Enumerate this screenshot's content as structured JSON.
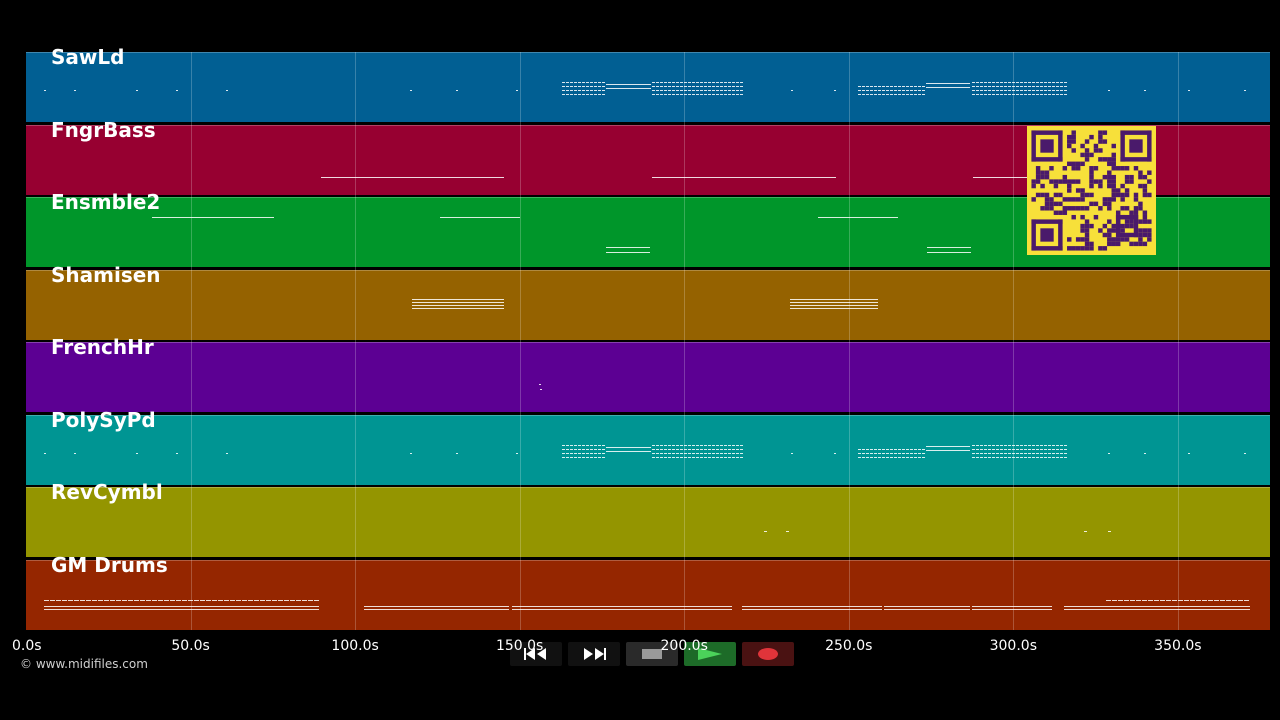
{
  "tracks": [
    {
      "name": "SawLd",
      "color": "#015f93"
    },
    {
      "name": "FngrBass",
      "color": "#970031"
    },
    {
      "name": "Ensmble2",
      "color": "#00962a"
    },
    {
      "name": "Shamisen",
      "color": "#956200"
    },
    {
      "name": "FrenchHr",
      "color": "#5c0093"
    },
    {
      "name": "PolySyPd",
      "color": "#009593"
    },
    {
      "name": "RevCymbl",
      "color": "#949500"
    },
    {
      "name": "GM Drums",
      "color": "#952600"
    }
  ],
  "timeline": {
    "labels": [
      "0.0s",
      "50.0s",
      "100.0s",
      "150.0s",
      "200.0s",
      "250.0s",
      "300.0s",
      "350.0s"
    ],
    "max_seconds": 378
  },
  "transport": {
    "rewind_icon": "rewind-icon",
    "forward_icon": "fast-forward-icon",
    "stop_icon": "stop-icon",
    "play_icon": "play-icon",
    "record_icon": "record-icon"
  },
  "footer": {
    "copyright": "© www.midifiles.com"
  },
  "qr": {
    "color": "#f7e03a",
    "ink": "#4a1a6b"
  }
}
